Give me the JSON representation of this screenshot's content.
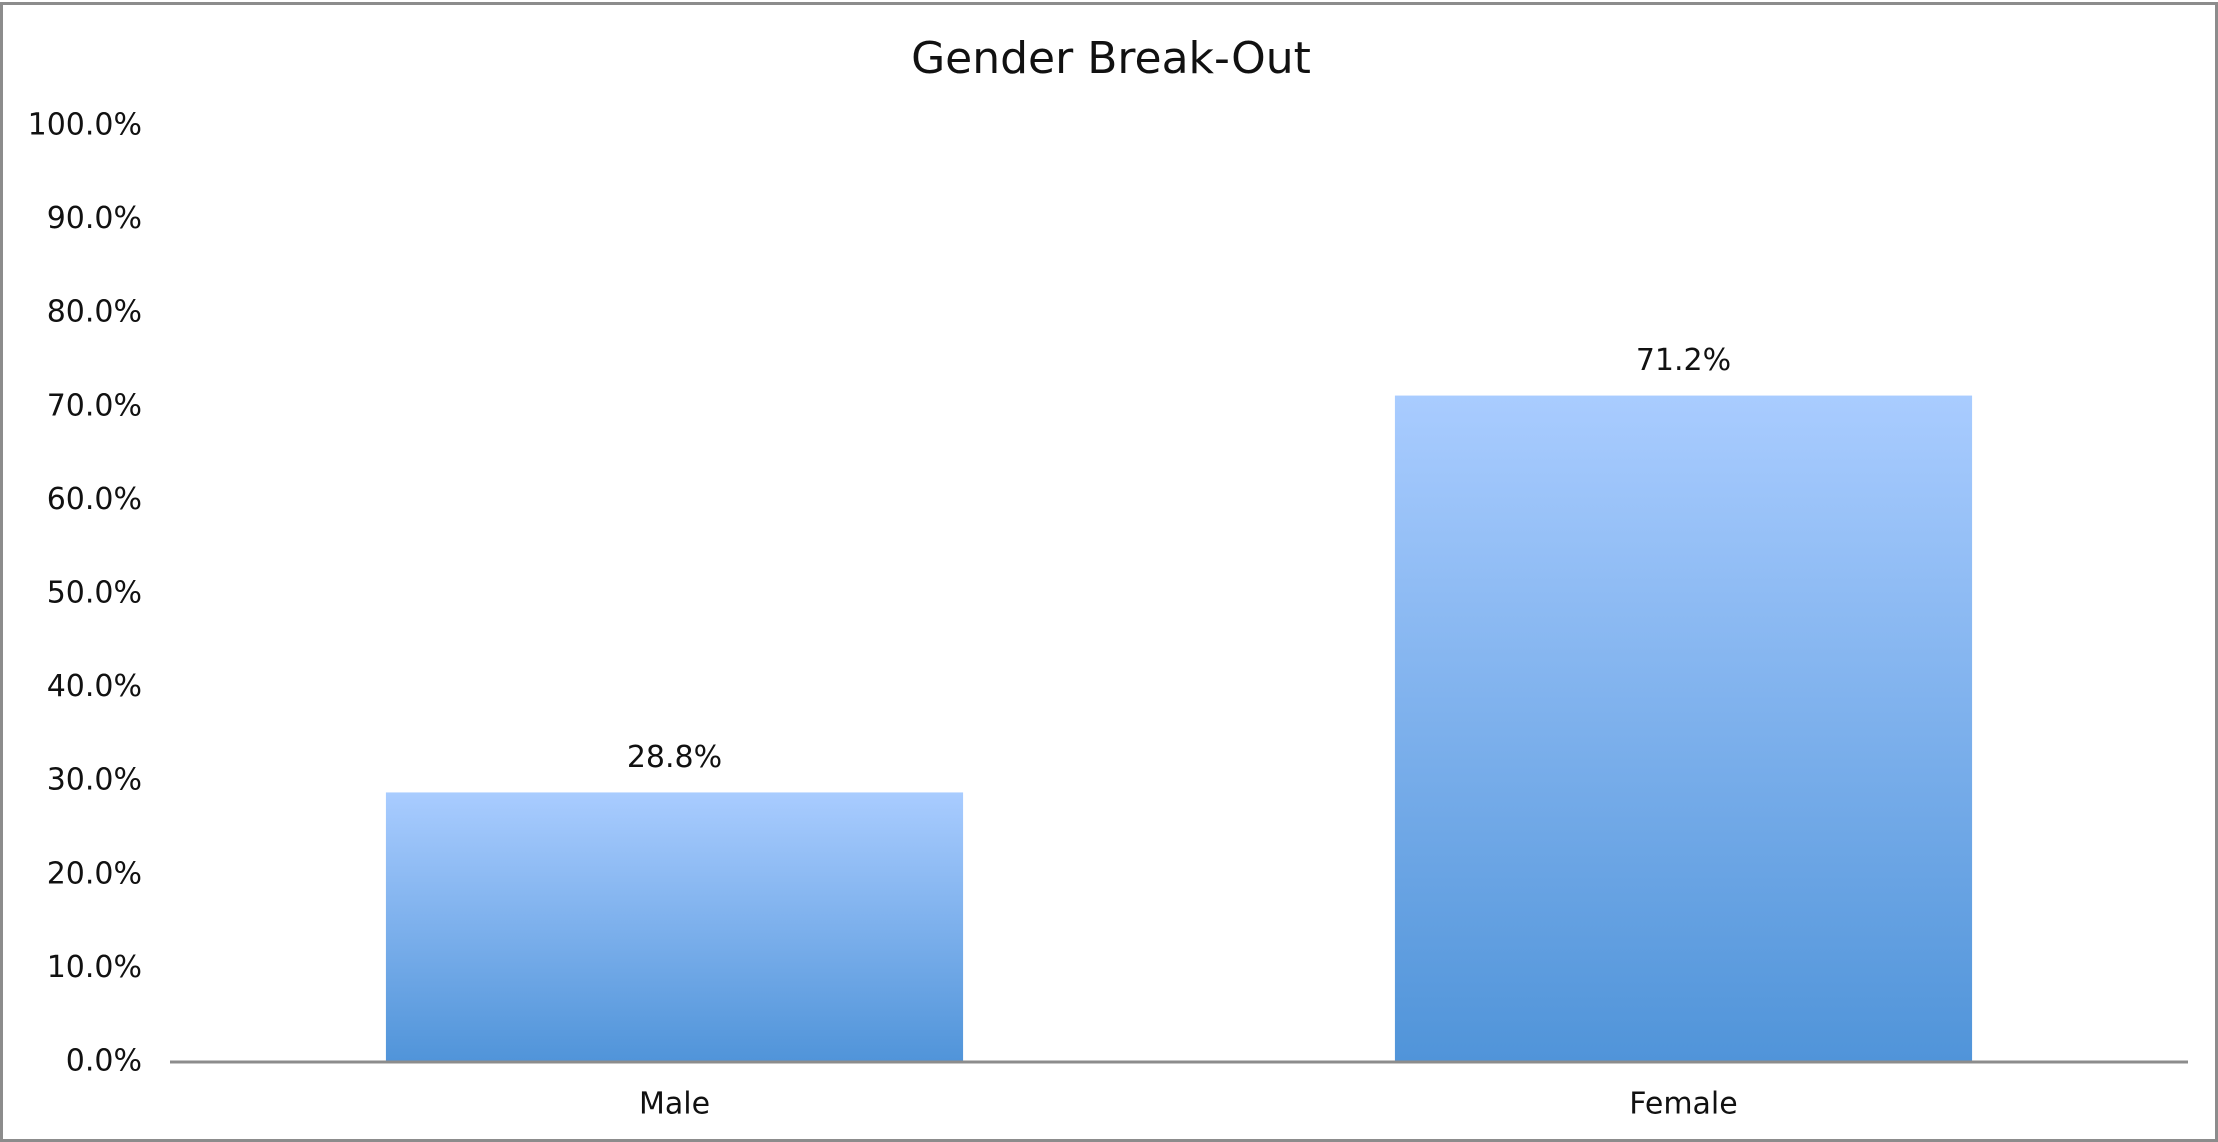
{
  "chart_data": {
    "type": "bar",
    "title": "Gender Break-Out",
    "categories": [
      "Male",
      "Female"
    ],
    "values": [
      28.8,
      71.2
    ],
    "value_labels": [
      "28.8%",
      "71.2%"
    ],
    "color": "#5b9bdf",
    "ylim": [
      0,
      100
    ],
    "yticks": [
      {
        "value": 0,
        "label": "0.0%"
      },
      {
        "value": 10,
        "label": "10.0%"
      },
      {
        "value": 20,
        "label": "20.0%"
      },
      {
        "value": 30,
        "label": "30.0%"
      },
      {
        "value": 40,
        "label": "40.0%"
      },
      {
        "value": 50,
        "label": "50.0%"
      },
      {
        "value": 60,
        "label": "60.0%"
      },
      {
        "value": 70,
        "label": "70.0%"
      },
      {
        "value": 80,
        "label": "80.0%"
      },
      {
        "value": 90,
        "label": "90.0%"
      },
      {
        "value": 100,
        "label": "100.0%"
      }
    ],
    "grid": false
  }
}
